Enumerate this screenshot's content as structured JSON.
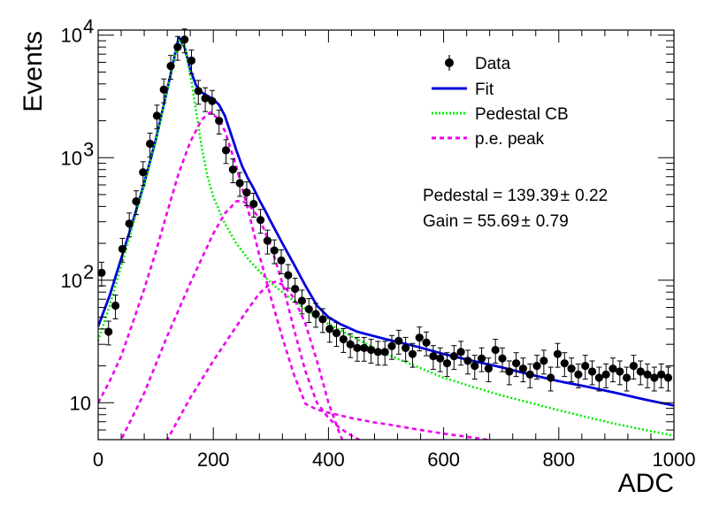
{
  "chart_data": {
    "type": "scatter",
    "title": "",
    "xlabel": "ADC",
    "ylabel": "Events",
    "xlim": [
      0,
      1000
    ],
    "ylim": [
      5,
      11000
    ],
    "y_scale": "log",
    "grid": false,
    "legend_position": "top-right",
    "x_ticks": [
      0,
      200,
      400,
      600,
      800,
      1000
    ],
    "x_tick_labels": [
      "0",
      "200",
      "400",
      "600",
      "800",
      "1000"
    ],
    "y_ticks": [
      10,
      100,
      1000,
      10000
    ],
    "y_tick_labels": [
      {
        "base": "10",
        "exp": ""
      },
      {
        "base": "10",
        "exp": "2"
      },
      {
        "base": "10",
        "exp": "3"
      },
      {
        "base": "10",
        "exp": "4"
      }
    ],
    "series": [
      {
        "name": "Data",
        "style": "points",
        "color": "#000000",
        "x": [
          6,
          18,
          30,
          42,
          54,
          66,
          78,
          90,
          102,
          114,
          126,
          138,
          150,
          162,
          174,
          186,
          198,
          210,
          222,
          234,
          246,
          258,
          270,
          282,
          294,
          306,
          318,
          330,
          342,
          354,
          366,
          378,
          390,
          402,
          414,
          426,
          438,
          450,
          462,
          474,
          486,
          498,
          510,
          522,
          534,
          546,
          558,
          570,
          582,
          594,
          606,
          618,
          630,
          642,
          654,
          666,
          678,
          690,
          702,
          714,
          726,
          738,
          750,
          762,
          774,
          786,
          798,
          810,
          822,
          834,
          846,
          858,
          870,
          882,
          894,
          906,
          918,
          930,
          942,
          954,
          966,
          978,
          990
        ],
        "y": [
          115,
          38,
          62,
          180,
          290,
          440,
          760,
          1300,
          2200,
          3600,
          5600,
          8000,
          9200,
          6200,
          3500,
          3050,
          2900,
          2000,
          1150,
          800,
          620,
          520,
          420,
          310,
          210,
          175,
          145,
          110,
          85,
          68,
          58,
          53,
          48,
          40,
          37,
          33,
          30,
          28,
          28,
          27,
          26,
          26,
          29,
          32,
          28,
          25,
          34,
          31,
          24,
          23,
          21,
          24,
          26,
          22,
          20,
          23,
          19,
          27,
          23,
          18,
          21,
          19,
          17,
          20,
          22,
          16,
          25,
          21,
          19,
          17,
          20,
          18,
          16,
          17,
          19,
          18,
          16,
          20,
          18,
          17,
          16,
          17,
          16
        ],
        "y_err_frac": 0.22
      },
      {
        "name": "Fit",
        "style": "line",
        "color": "#0000dd",
        "x": [
          0,
          20,
          40,
          60,
          80,
          100,
          120,
          140,
          150,
          160,
          170,
          180,
          190,
          200,
          210,
          220,
          230,
          240,
          250,
          260,
          270,
          280,
          290,
          300,
          320,
          340,
          360,
          380,
          400,
          420,
          450,
          500,
          550,
          600,
          650,
          700,
          750,
          800,
          850,
          900,
          950,
          1000
        ],
        "y": [
          42,
          75,
          150,
          300,
          620,
          1400,
          3600,
          9600,
          8000,
          5200,
          3900,
          3400,
          3200,
          3000,
          2700,
          2200,
          1600,
          1150,
          850,
          680,
          560,
          450,
          370,
          300,
          200,
          135,
          90,
          62,
          50,
          44,
          38,
          33,
          29,
          25,
          22,
          19.5,
          17,
          15,
          13.5,
          12,
          10.6,
          9.5
        ]
      },
      {
        "name": "Pedestal CB",
        "style": "dotted",
        "color": "#00ee00",
        "x": [
          0,
          20,
          40,
          60,
          80,
          100,
          120,
          140,
          150,
          160,
          170,
          180,
          190,
          200,
          220,
          240,
          260,
          280,
          300,
          320,
          340,
          360,
          380,
          400,
          450,
          500,
          550,
          600,
          650,
          700,
          750,
          800,
          850,
          900,
          950,
          1000
        ],
        "y": [
          32,
          62,
          130,
          280,
          600,
          1350,
          3600,
          9300,
          8200,
          4800,
          2400,
          1200,
          700,
          480,
          290,
          200,
          150,
          118,
          95,
          80,
          68,
          58,
          50,
          44,
          33,
          25,
          20,
          16,
          13.5,
          11.5,
          10,
          8.7,
          7.6,
          6.7,
          6,
          5.4
        ]
      },
      {
        "name": "p.e. peak",
        "style": "dashed",
        "color": "#ee00ee",
        "x": [
          0,
          20,
          40,
          60,
          80,
          100,
          120,
          140,
          160,
          180,
          195,
          210,
          220,
          240,
          260,
          280,
          300,
          320,
          340,
          360,
          380,
          400,
          420,
          440,
          460,
          480,
          500,
          550,
          600,
          650,
          700,
          750,
          800,
          850,
          900,
          950,
          1000
        ],
        "y": [
          10,
          15,
          24,
          45,
          85,
          170,
          360,
          750,
          1350,
          2050,
          2350,
          2050,
          1650,
          850,
          380,
          160,
          72,
          34,
          17,
          9.8,
          8.8,
          8.3,
          7.9,
          7.5,
          7.2,
          6.9,
          6.7,
          6.1,
          5.6,
          5.2,
          4.8,
          4.5,
          4.3,
          4.1,
          3.9,
          3.7,
          3.5
        ],
        "components": [
          {
            "x": [
              0,
              40,
              80,
              120,
              160,
              200,
              220,
              240,
              248,
              260,
              280,
              300,
              320,
              340,
              360,
              380,
              400,
              420,
              440,
              460
            ],
            "y": [
              2,
              5,
              12,
              35,
              95,
              240,
              350,
              440,
              445,
              420,
              320,
              190,
              95,
              40,
              18,
              10,
              7.5,
              6.2,
              5.4,
              4.8
            ]
          },
          {
            "x": [
              40,
              80,
              120,
              160,
              200,
              240,
              260,
              280,
              300,
              308,
              320,
              340,
              360,
              380,
              400,
              420,
              440
            ],
            "y": [
              1,
              2.3,
              5,
              11,
              22,
              42,
              58,
              78,
              95,
              97,
              92,
              72,
              44,
              22,
              10,
              5.5,
              3.5
            ]
          }
        ]
      }
    ],
    "legend": [
      {
        "label": "Data",
        "marker": "point"
      },
      {
        "label": "Fit",
        "marker": "solid"
      },
      {
        "label": "Pedestal CB",
        "marker": "dotted"
      },
      {
        "label": "p.e. peak",
        "marker": "dashed"
      }
    ],
    "annotations": [
      {
        "label": "Pedestal = 139.39",
        "pm": "±",
        "err": "0.22"
      },
      {
        "label": "Gain = 55.69",
        "pm": "±",
        "err": "0.79"
      }
    ]
  }
}
